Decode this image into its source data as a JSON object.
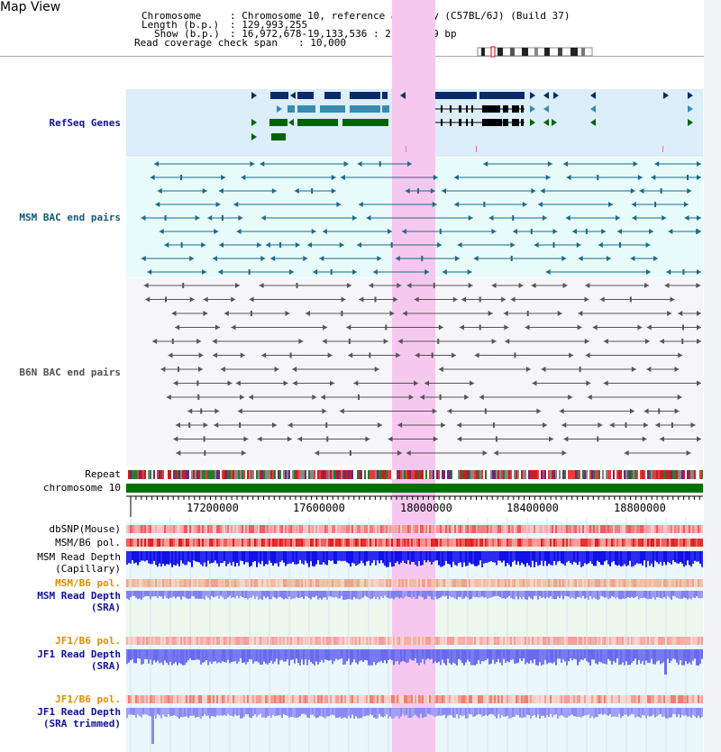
{
  "title": "Map View",
  "header": {
    "chromosome_label": "Chromosome",
    "chromosome_value": ": Chromosome 10, reference assembly (C57BL/6J) (Build 37)",
    "length_label": "Length (b.p.)",
    "length_value": ": 129,993,255",
    "show_label": "Show (b.p.)",
    "show_value": ": 16,972,678-19,133,536 : 2,160,859 bp",
    "coverage_label": "Read coverage check span",
    "coverage_value": ": 10,000"
  },
  "tracks": {
    "refseq": "RefSeq Genes",
    "msm_bac": "MSM BAC end pairs",
    "b6n_bac": "B6N BAC end pairs",
    "repeat": "Repeat",
    "chromosome": "chromosome 10",
    "dbsnp": "dbSNP(Mouse)",
    "msm_b6_pol_1": "MSM/B6 pol.",
    "msm_depth_cap_1": "MSM Read Depth",
    "msm_depth_cap_2": "(Capillary)",
    "msm_b6_pol_2": "MSM/B6 pol.",
    "msm_depth_sra_1": "MSM Read Depth",
    "msm_depth_sra_2": "(SRA)",
    "jf1_b6_pol_1": "JF1/B6 pol.",
    "jf1_depth_sra_1": "JF1 Read Depth",
    "jf1_depth_sra_2": "(SRA)",
    "jf1_b6_pol_2": "JF1/B6 pol.",
    "jf1_depth_trim_1": "JF1 Read Depth",
    "jf1_depth_trim_2": "(SRA trimmed)"
  },
  "axis": {
    "ticks": [
      "17200000",
      "17600000",
      "18000000",
      "18400000",
      "18800000"
    ]
  },
  "colors": {
    "refseq_dark": "#0a2a6a",
    "refseq_mid": "#3a8ab0",
    "refseq_green": "#006400",
    "bac_teal": "#1a6a8a",
    "bac_gray": "#555555",
    "highlight": "#f7c8ef",
    "chromosome_bar": "#007000",
    "snp_red": "#e83030",
    "depth_blue": "#1010e8",
    "depth_light": "#6a6af0"
  }
}
